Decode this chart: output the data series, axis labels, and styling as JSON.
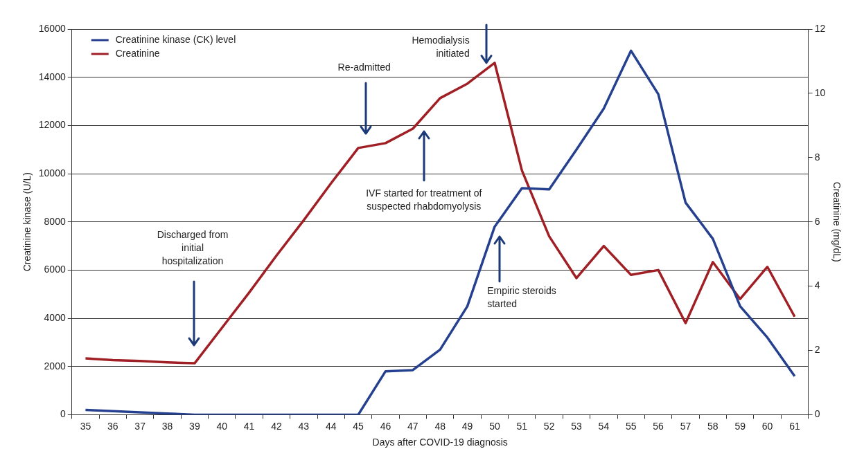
{
  "chart_data": {
    "type": "line",
    "xlabel": "Days after COVID-19 diagnosis",
    "ylabel": "Creatinine kinase (U/L)",
    "y2label": "Creatinine (mg/dL)",
    "categories": [
      "35",
      "36",
      "37",
      "38",
      "39",
      "40",
      "41",
      "42",
      "43",
      "44",
      "45",
      "46",
      "47",
      "48",
      "49",
      "50",
      "51",
      "52",
      "53",
      "54",
      "55",
      "56",
      "57",
      "58",
      "59",
      "60",
      "61"
    ],
    "series": [
      {
        "name": "Creatinine kinase (CK) level",
        "color": "#25408f",
        "values": [
          200,
          150,
          100,
          50,
          0,
          0,
          0,
          0,
          0,
          0,
          0,
          1800,
          1850,
          2700,
          4500,
          7800,
          9400,
          9350,
          11000,
          12700,
          15100,
          13300,
          8800,
          7300,
          4500,
          3200,
          1600
        ]
      },
      {
        "name": "Creatinine",
        "color": "#a01f24",
        "axis": "y2",
        "values": [
          1.75,
          1.7,
          1.67,
          1.63,
          1.6,
          2.7,
          3.8,
          4.95,
          6.05,
          7.2,
          8.3,
          8.45,
          8.9,
          9.85,
          10.3,
          10.95,
          7.6,
          5.55,
          4.25,
          5.25,
          4.35,
          4.5,
          2.85,
          4.75,
          3.6,
          4.6,
          3.05
        ]
      }
    ],
    "ylim": [
      0,
      16000
    ],
    "yticks": [
      0,
      2000,
      4000,
      6000,
      8000,
      10000,
      12000,
      14000,
      16000
    ],
    "y2lim": [
      0,
      12
    ],
    "y2ticks": [
      0,
      2,
      4,
      6,
      8,
      10,
      12
    ],
    "grid": "y",
    "legend": "top left",
    "marker": "none",
    "line_style": "solid",
    "annotations": [
      "Discharged from initial hospitalization",
      "Re-admitted",
      "Hemodialysis initiated",
      "IVF started for treatment of suspected rhabdomyolysis",
      "Empiric steroids started"
    ]
  }
}
